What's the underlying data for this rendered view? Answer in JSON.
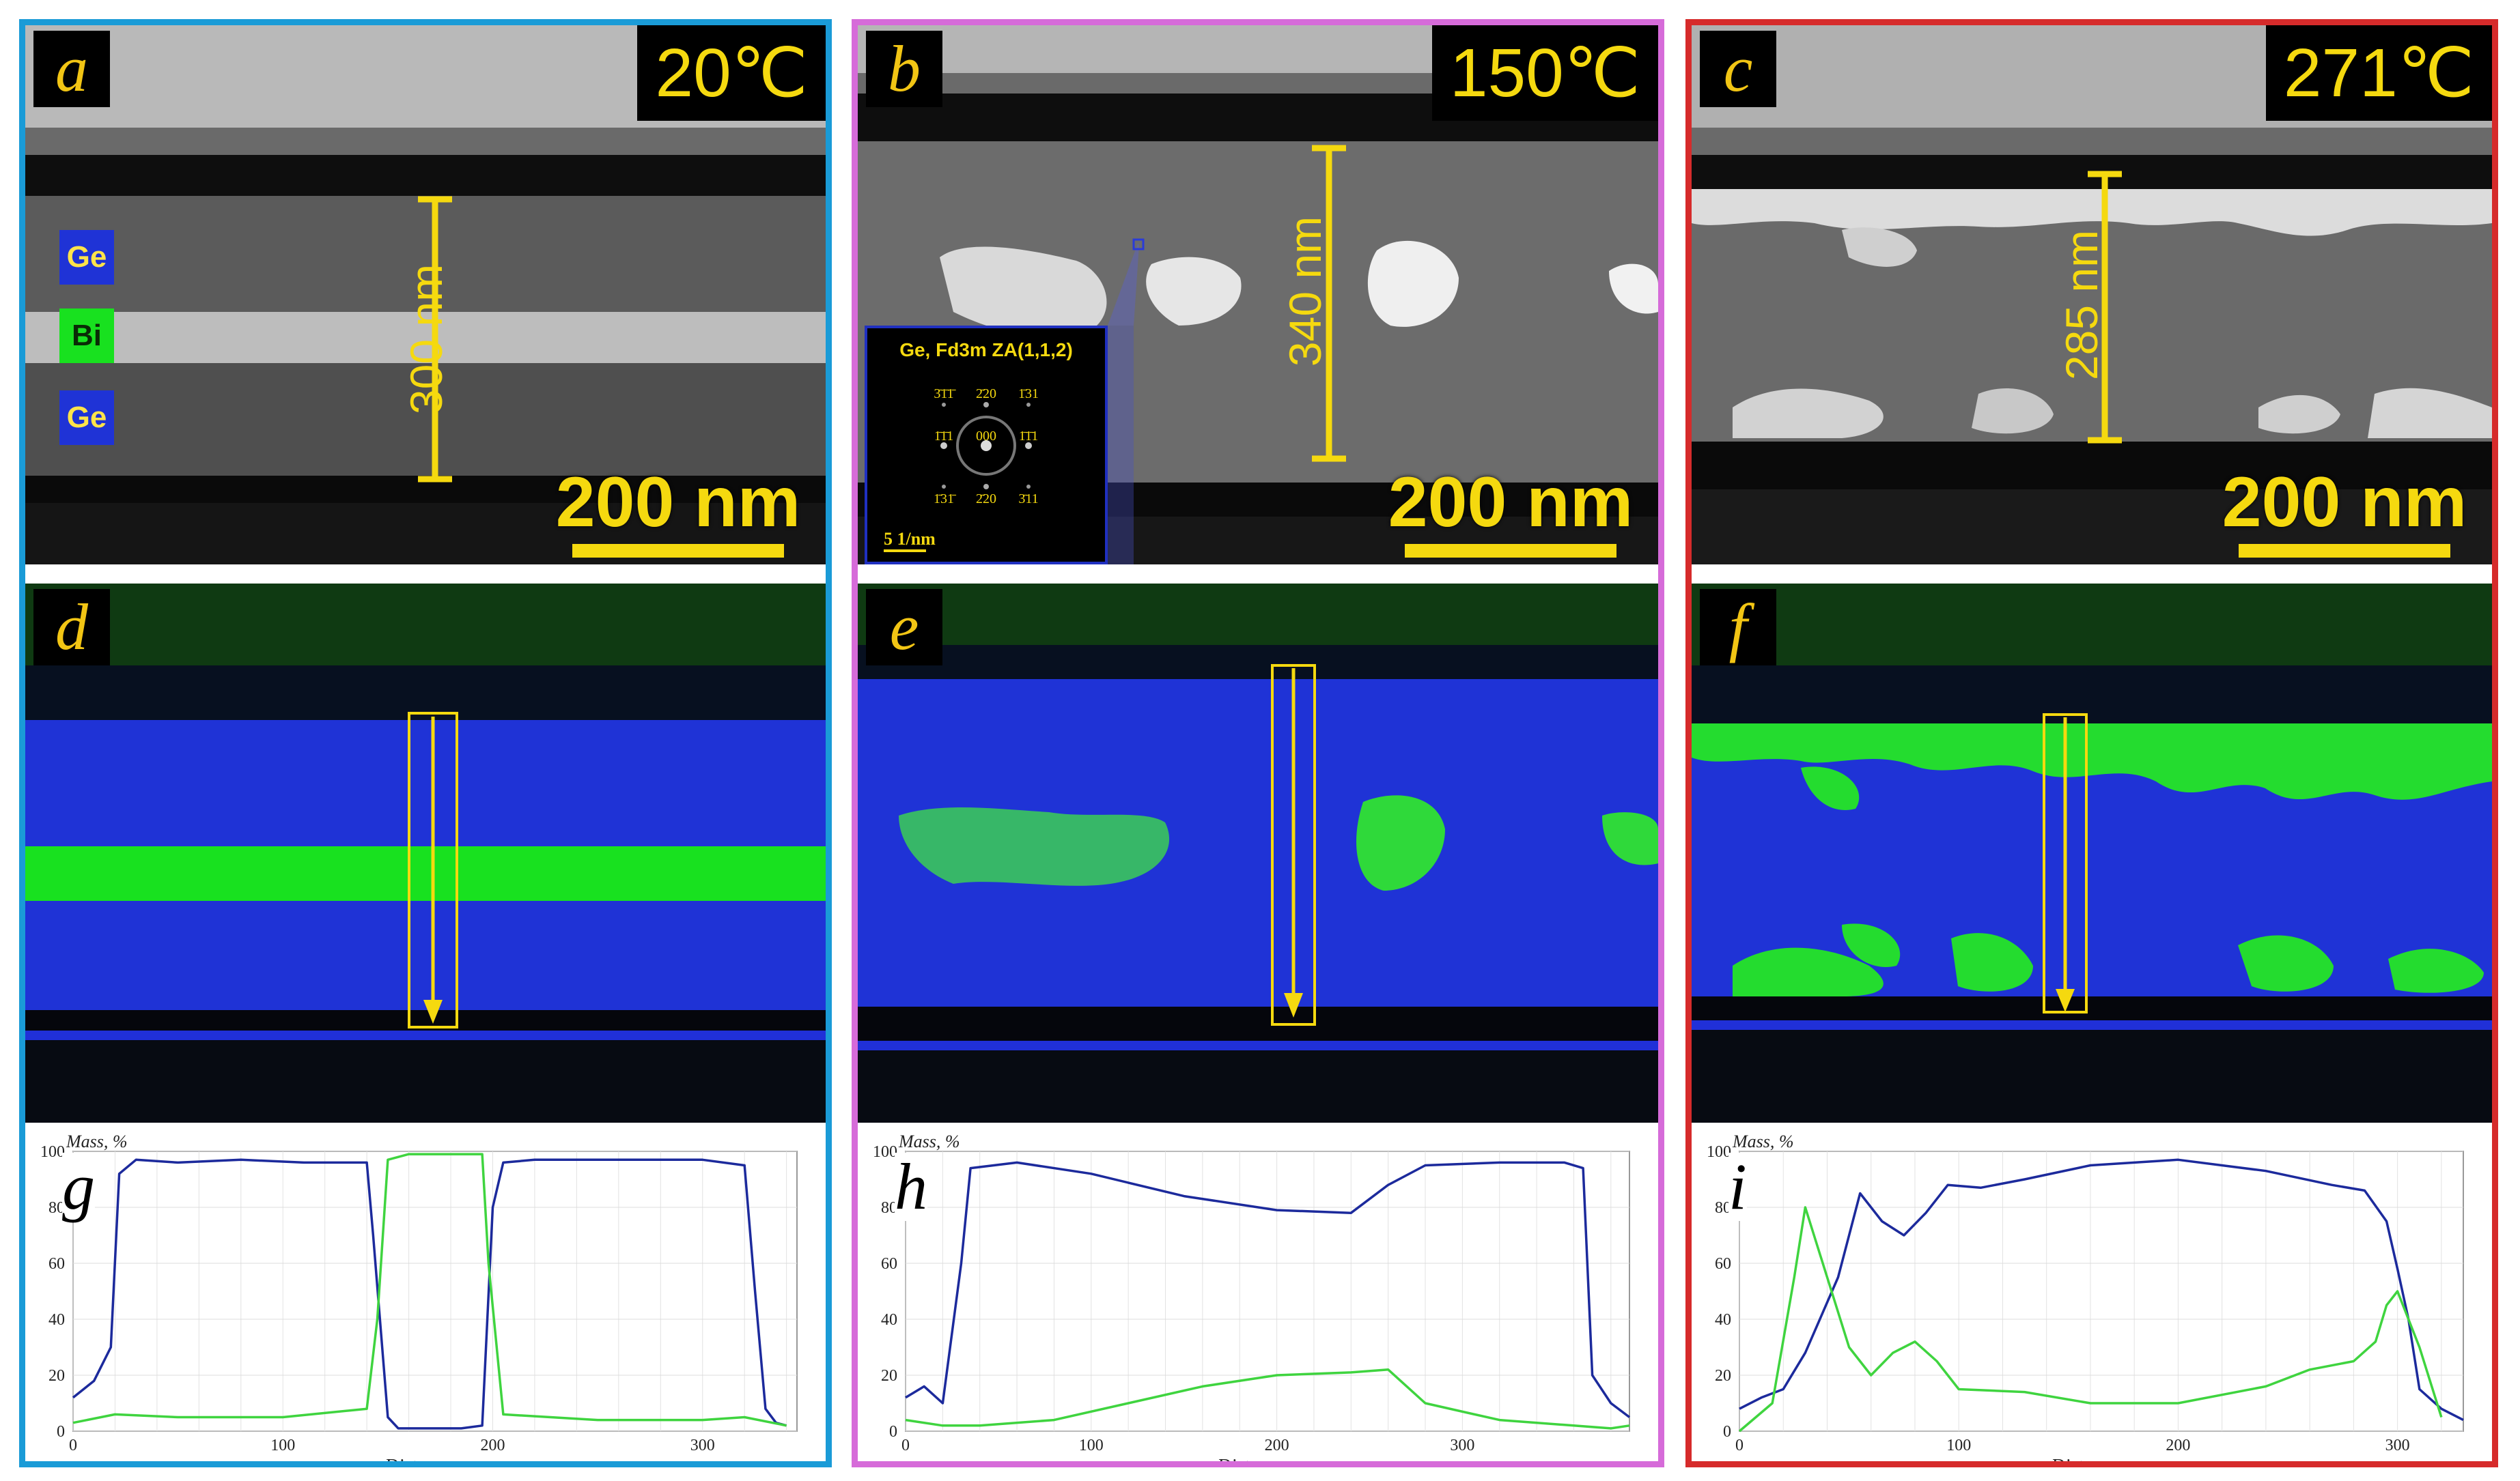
{
  "figure": {
    "columns": [
      {
        "letters": {
          "tem": "a",
          "map": "d",
          "profile": "g"
        },
        "temperature": "20℃",
        "thickness_label": "300 nm",
        "scale_bar": "200 nm",
        "frame_color": "#1a9bd7",
        "layer_labels": [
          "Ge",
          "Bi",
          "Ge"
        ]
      },
      {
        "letters": {
          "tem": "b",
          "map": "e",
          "profile": "h"
        },
        "temperature": "150℃",
        "thickness_label": "340 nm",
        "scale_bar": "200 nm",
        "frame_color": "#d66bd9",
        "inset": {
          "title": "Ge, Fd3m ZA(1,1,2)",
          "scale": "5 1/nm",
          "spots": [
            "3̄1̄1̄",
            "2̄20",
            "1̄31",
            "1̄1̄1",
            "000",
            "1̄1̄1",
            "1̄31̄",
            "2̄20",
            "3̄11"
          ]
        }
      },
      {
        "letters": {
          "tem": "c",
          "map": "f",
          "profile": "i"
        },
        "temperature": "271℃",
        "thickness_label": "285 nm",
        "scale_bar": "200 nm",
        "frame_color": "#d62b2b"
      }
    ],
    "colors": {
      "ge": "#1f33d6",
      "bi": "#18e11f",
      "accent": "#f5d90f",
      "ge_line": "#1c2a9c",
      "bi_line": "#3fd43f"
    }
  },
  "chart_data": [
    {
      "type": "line",
      "xlabel": "Distance, nm",
      "ylabel": "Mass, %",
      "xlim": [
        0,
        345
      ],
      "ylim": [
        0,
        100
      ],
      "xticks": [
        0,
        100,
        200,
        300
      ],
      "yticks": [
        0,
        20,
        40,
        60,
        80,
        100
      ],
      "grid": true,
      "series": [
        {
          "color": "#1c2a9c",
          "x": [
            0,
            10,
            18,
            22,
            30,
            50,
            80,
            110,
            140,
            143,
            150,
            155,
            170,
            185,
            195,
            200,
            205,
            220,
            260,
            300,
            320,
            325,
            330,
            335,
            340
          ],
          "y": [
            12,
            18,
            30,
            92,
            97,
            96,
            97,
            96,
            96,
            70,
            5,
            1,
            1,
            1,
            2,
            80,
            96,
            97,
            97,
            97,
            95,
            50,
            8,
            3,
            2
          ]
        },
        {
          "color": "#3fd43f",
          "x": [
            0,
            20,
            50,
            100,
            140,
            145,
            150,
            160,
            180,
            195,
            198,
            205,
            250,
            300,
            320,
            340
          ],
          "y": [
            3,
            6,
            5,
            5,
            8,
            40,
            97,
            99,
            99,
            99,
            60,
            6,
            4,
            4,
            5,
            2
          ]
        }
      ]
    },
    {
      "type": "line",
      "xlabel": "Distance, nm",
      "ylabel": "Mass, %",
      "xlim": [
        0,
        390
      ],
      "ylim": [
        0,
        100
      ],
      "xticks": [
        0,
        100,
        200,
        300
      ],
      "yticks": [
        0,
        20,
        40,
        60,
        80,
        100
      ],
      "grid": true,
      "series": [
        {
          "color": "#1c2a9c",
          "x": [
            0,
            10,
            20,
            30,
            35,
            60,
            100,
            150,
            200,
            240,
            260,
            280,
            320,
            355,
            365,
            370,
            380,
            390
          ],
          "y": [
            12,
            16,
            10,
            60,
            94,
            96,
            92,
            84,
            79,
            78,
            88,
            95,
            96,
            96,
            94,
            20,
            10,
            5
          ]
        },
        {
          "color": "#3fd43f",
          "x": [
            0,
            20,
            40,
            80,
            120,
            160,
            200,
            240,
            260,
            280,
            320,
            360,
            380,
            390
          ],
          "y": [
            4,
            2,
            2,
            4,
            10,
            16,
            20,
            21,
            22,
            10,
            4,
            2,
            1,
            2
          ]
        }
      ]
    },
    {
      "type": "line",
      "xlabel": "Distance, nm",
      "ylabel": "Mass, %",
      "xlim": [
        0,
        330
      ],
      "ylim": [
        0,
        100
      ],
      "xticks": [
        0,
        100,
        200,
        300
      ],
      "yticks": [
        0,
        20,
        40,
        60,
        80,
        100
      ],
      "grid": true,
      "series": [
        {
          "color": "#1c2a9c",
          "x": [
            0,
            10,
            20,
            30,
            45,
            55,
            65,
            75,
            85,
            95,
            110,
            130,
            160,
            200,
            240,
            270,
            285,
            295,
            300,
            305,
            310,
            320,
            330
          ],
          "y": [
            8,
            12,
            15,
            28,
            55,
            85,
            75,
            70,
            78,
            88,
            87,
            90,
            95,
            97,
            93,
            88,
            86,
            75,
            58,
            40,
            15,
            8,
            4
          ]
        },
        {
          "color": "#3fd43f",
          "x": [
            0,
            15,
            25,
            30,
            40,
            50,
            60,
            70,
            80,
            90,
            100,
            130,
            160,
            200,
            240,
            260,
            280,
            290,
            295,
            300,
            310,
            320
          ],
          "y": [
            0,
            10,
            55,
            80,
            55,
            30,
            20,
            28,
            32,
            25,
            15,
            14,
            10,
            10,
            16,
            22,
            25,
            32,
            45,
            50,
            30,
            5
          ]
        }
      ]
    }
  ]
}
